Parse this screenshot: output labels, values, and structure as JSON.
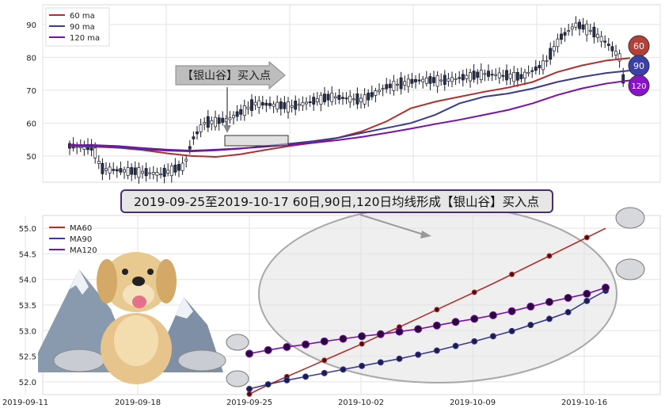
{
  "top_chart": {
    "legend": [
      {
        "label": "60 ma",
        "color": "#b03030"
      },
      {
        "label": "90 ma",
        "color": "#3a3a90"
      },
      {
        "label": "120 ma",
        "color": "#7a10a8"
      }
    ],
    "y_ticks": [
      "90",
      "80",
      "70",
      "60",
      "50"
    ],
    "annotation": "【银山谷】买入点",
    "badges": [
      {
        "label": "60",
        "color": "#b5403a"
      },
      {
        "label": "90",
        "color": "#3b3fa8"
      },
      {
        "label": "120",
        "color": "#8a12c8"
      }
    ]
  },
  "caption": "2019-09-25至2019-10-17 60日,90日,120日均线形成【银山谷】买入点",
  "chart_data": [
    {
      "type": "line",
      "series": [
        {
          "name": "60 ma",
          "values": [
            53.0,
            52.8,
            52.5,
            51.8,
            50.8,
            50.0,
            49.7,
            50.5,
            51.8,
            53.0,
            54.0,
            55.5,
            57.5,
            60.5,
            64.5,
            66.5,
            68.0,
            69.5,
            70.8,
            72.5,
            75.5,
            77.5,
            79.0,
            79.8
          ]
        },
        {
          "name": "90 ma",
          "values": [
            53.2,
            53.0,
            52.6,
            52.0,
            51.6,
            51.4,
            51.7,
            52.2,
            53.0,
            53.7,
            54.5,
            55.5,
            57.0,
            58.5,
            60.0,
            62.5,
            66.0,
            68.0,
            69.0,
            70.5,
            72.5,
            74.0,
            75.2,
            76.0
          ]
        },
        {
          "name": "120 ma",
          "values": [
            53.3,
            53.3,
            53.0,
            52.4,
            51.9,
            51.6,
            51.9,
            52.3,
            52.8,
            53.4,
            54.0,
            54.8,
            55.8,
            57.0,
            58.3,
            59.7,
            61.0,
            62.5,
            64.0,
            66.0,
            68.5,
            70.5,
            72.0,
            73.0
          ]
        }
      ],
      "y_ticks": [
        90,
        80,
        70,
        60,
        50
      ],
      "ylim": [
        42,
        96
      ]
    },
    {
      "type": "line",
      "series": [
        {
          "name": "MA60",
          "values": [
            51.76,
            51.94,
            52.1,
            52.26,
            52.42,
            52.58,
            52.74,
            52.91,
            53.07,
            53.24,
            53.41,
            53.58,
            53.75,
            53.92,
            54.1,
            54.28,
            54.46,
            54.64,
            54.82,
            55.0
          ]
        },
        {
          "name": "MA90",
          "values": [
            51.86,
            51.95,
            52.03,
            52.1,
            52.17,
            52.24,
            52.31,
            52.38,
            52.45,
            52.53,
            52.61,
            52.7,
            52.79,
            52.89,
            52.99,
            53.11,
            53.23,
            53.36,
            53.58,
            53.78
          ]
        },
        {
          "name": "MA120",
          "values": [
            52.55,
            52.62,
            52.68,
            52.73,
            52.79,
            52.84,
            52.89,
            52.93,
            52.98,
            53.03,
            53.1,
            53.17,
            53.23,
            53.3,
            53.38,
            53.47,
            53.56,
            53.64,
            53.72,
            53.84
          ]
        }
      ],
      "x_ticks": [
        "2019-09-11",
        "2019-09-18",
        "2019-09-25",
        "2019-10-02",
        "2019-10-09",
        "2019-10-16"
      ],
      "y_ticks": [
        55.0,
        54.5,
        54.0,
        53.5,
        53.0,
        52.5,
        52.0
      ],
      "ylim": [
        51.75,
        55.25
      ]
    }
  ],
  "bottom_chart": {
    "legend": [
      {
        "label": "MA60",
        "color": "#b03030"
      },
      {
        "label": "MA90",
        "color": "#3a3a90"
      },
      {
        "label": "MA120",
        "color": "#7a10a8"
      }
    ]
  }
}
